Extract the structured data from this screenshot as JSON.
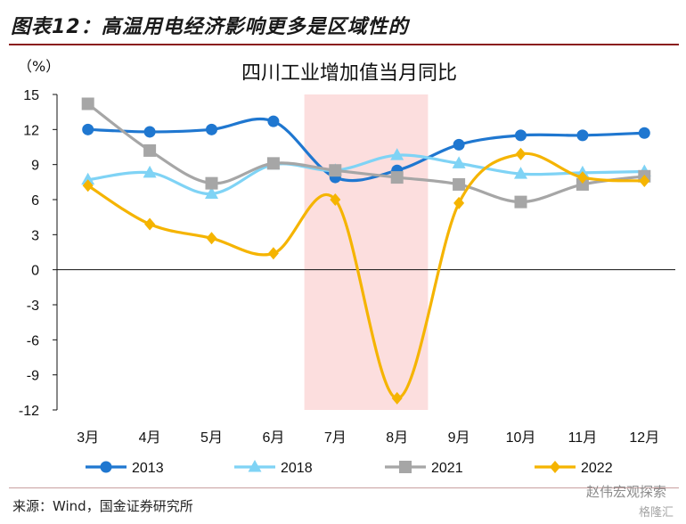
{
  "figure_title": "图表12：高温用电经济影响更多是区域性的",
  "source": "来源：Wind，国金证券研究所",
  "watermark": "赵伟宏观探索",
  "watermark_sub": "格隆汇",
  "colors": {
    "s2013": "#1f77d0",
    "s2018": "#7fd3f5",
    "s2021": "#a6a6a6",
    "s2022": "#f5b400",
    "shade": "#fcdede",
    "title_rule": "#8a1e1e"
  },
  "chart_data": {
    "type": "line",
    "title": "四川工业增加值当月同比",
    "ylabel": "（%）",
    "categories": [
      "3月",
      "4月",
      "5月",
      "6月",
      "7月",
      "8月",
      "9月",
      "10月",
      "11月",
      "12月"
    ],
    "ylim": [
      -12,
      15
    ],
    "yticks": [
      15,
      12,
      9,
      6,
      3,
      0,
      -3,
      -6,
      -9,
      -12
    ],
    "grid": false,
    "smooth": true,
    "legend_position": "bottom",
    "shaded_region": {
      "from": "7月",
      "to": "8月"
    },
    "series": [
      {
        "name": "2013",
        "marker": "circle",
        "values": [
          12.0,
          11.8,
          12.0,
          12.7,
          7.9,
          8.5,
          10.7,
          11.5,
          11.5,
          11.7
        ]
      },
      {
        "name": "2018",
        "marker": "triangle",
        "values": [
          7.7,
          8.3,
          6.5,
          9.0,
          8.5,
          9.8,
          9.1,
          8.2,
          8.3,
          8.4
        ]
      },
      {
        "name": "2021",
        "marker": "square",
        "values": [
          14.2,
          10.2,
          7.4,
          9.1,
          8.5,
          7.9,
          7.3,
          5.8,
          7.3,
          8.0
        ]
      },
      {
        "name": "2022",
        "marker": "diamond",
        "values": [
          7.2,
          3.9,
          2.7,
          1.4,
          6.0,
          -11.0,
          5.7,
          9.9,
          7.9,
          7.6
        ]
      }
    ]
  }
}
